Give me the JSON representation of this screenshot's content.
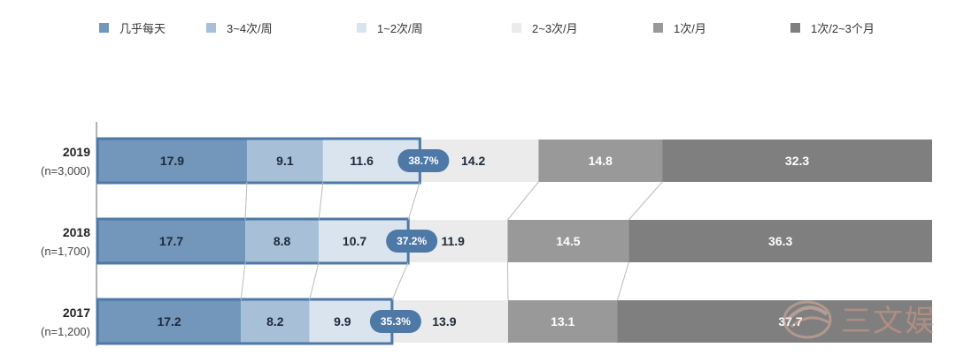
{
  "chart_data": {
    "type": "bar",
    "orientation": "horizontal",
    "stacked": true,
    "stack_normalized_percent": true,
    "categories": [
      {
        "year": "2019",
        "n": "(n=3,000)"
      },
      {
        "year": "2018",
        "n": "(n=1,700)"
      },
      {
        "year": "2017",
        "n": "(n=1,200)"
      }
    ],
    "series": [
      {
        "name": "几乎每天",
        "color": "#7396bb",
        "label_color": "#1e2a3a",
        "values": [
          17.9,
          17.7,
          17.2
        ],
        "labels": [
          "17.9",
          "17.7",
          "17.2"
        ]
      },
      {
        "name": "3~4次/周",
        "color": "#a7bfd7",
        "label_color": "#1e2a3a",
        "values": [
          9.1,
          8.8,
          8.2
        ],
        "labels": [
          "9.1",
          "8.8",
          "8.2"
        ]
      },
      {
        "name": "1~2次/周",
        "color": "#d9e4ef",
        "label_color": "#1e2a3a",
        "values": [
          11.6,
          10.7,
          9.9
        ],
        "labels": [
          "11.6",
          "10.7",
          "9.9"
        ]
      },
      {
        "name": "2~3次/月",
        "color": "#ebebeb",
        "label_color": "#1e2a3a",
        "values": [
          14.2,
          11.9,
          13.9
        ],
        "labels": [
          "14.2",
          "11.9",
          "13.9"
        ]
      },
      {
        "name": "1次/月",
        "color": "#999999",
        "label_color": "#ffffff",
        "values": [
          14.8,
          14.5,
          13.1
        ],
        "labels": [
          "14.8",
          "14.5",
          "13.1"
        ]
      },
      {
        "name": "1次/2~3个月",
        "color": "#7f7f7f",
        "label_color": "#ffffff",
        "values": [
          32.3,
          36.3,
          37.7
        ],
        "labels": [
          "32.3",
          "36.3",
          "37.7"
        ]
      }
    ],
    "highlight_totals": [
      "38.7%",
      "37.2%",
      "35.3%"
    ],
    "highlight_color": "#4e78a6",
    "highlight_series_count": 3,
    "legend_position": "top",
    "grid": false
  },
  "watermark": {
    "text": "三文娱"
  }
}
